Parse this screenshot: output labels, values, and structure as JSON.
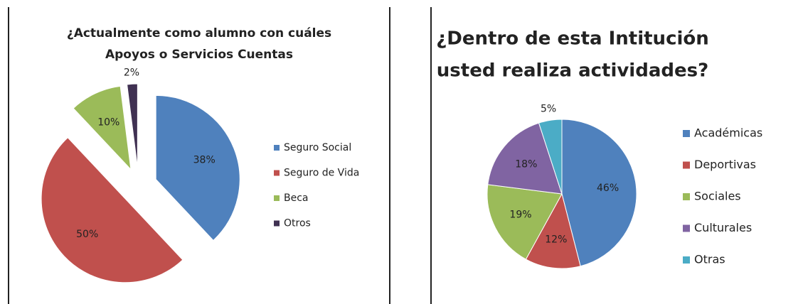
{
  "chart_data": [
    {
      "type": "pie",
      "title": [
        "¿Actualmente como alumno con cuáles",
        "Apoyos o Servicios Cuentas"
      ],
      "categories": [
        "Seguro Social",
        "Seguro de Vida",
        "Beca",
        "Otros"
      ],
      "values": [
        38,
        50,
        10,
        2
      ],
      "value_labels": [
        "38%",
        "50%",
        "10%",
        "2%"
      ],
      "colors": [
        "#4f81bd",
        "#c0504d",
        "#9bbb59",
        "#403152"
      ],
      "exploded": true
    },
    {
      "type": "pie",
      "title": [
        "¿Dentro de esta Intitución",
        "usted realiza actividades?"
      ],
      "categories": [
        "Académicas",
        "Deportivas",
        "Sociales",
        "Culturales",
        "Otras"
      ],
      "values": [
        46,
        12,
        19,
        18,
        5
      ],
      "value_labels": [
        "46%",
        "12%",
        "19%",
        "18%",
        "5%"
      ],
      "colors": [
        "#4f81bd",
        "#c0504d",
        "#9bbb59",
        "#8064a2",
        "#4bacc6"
      ],
      "exploded": false
    }
  ]
}
